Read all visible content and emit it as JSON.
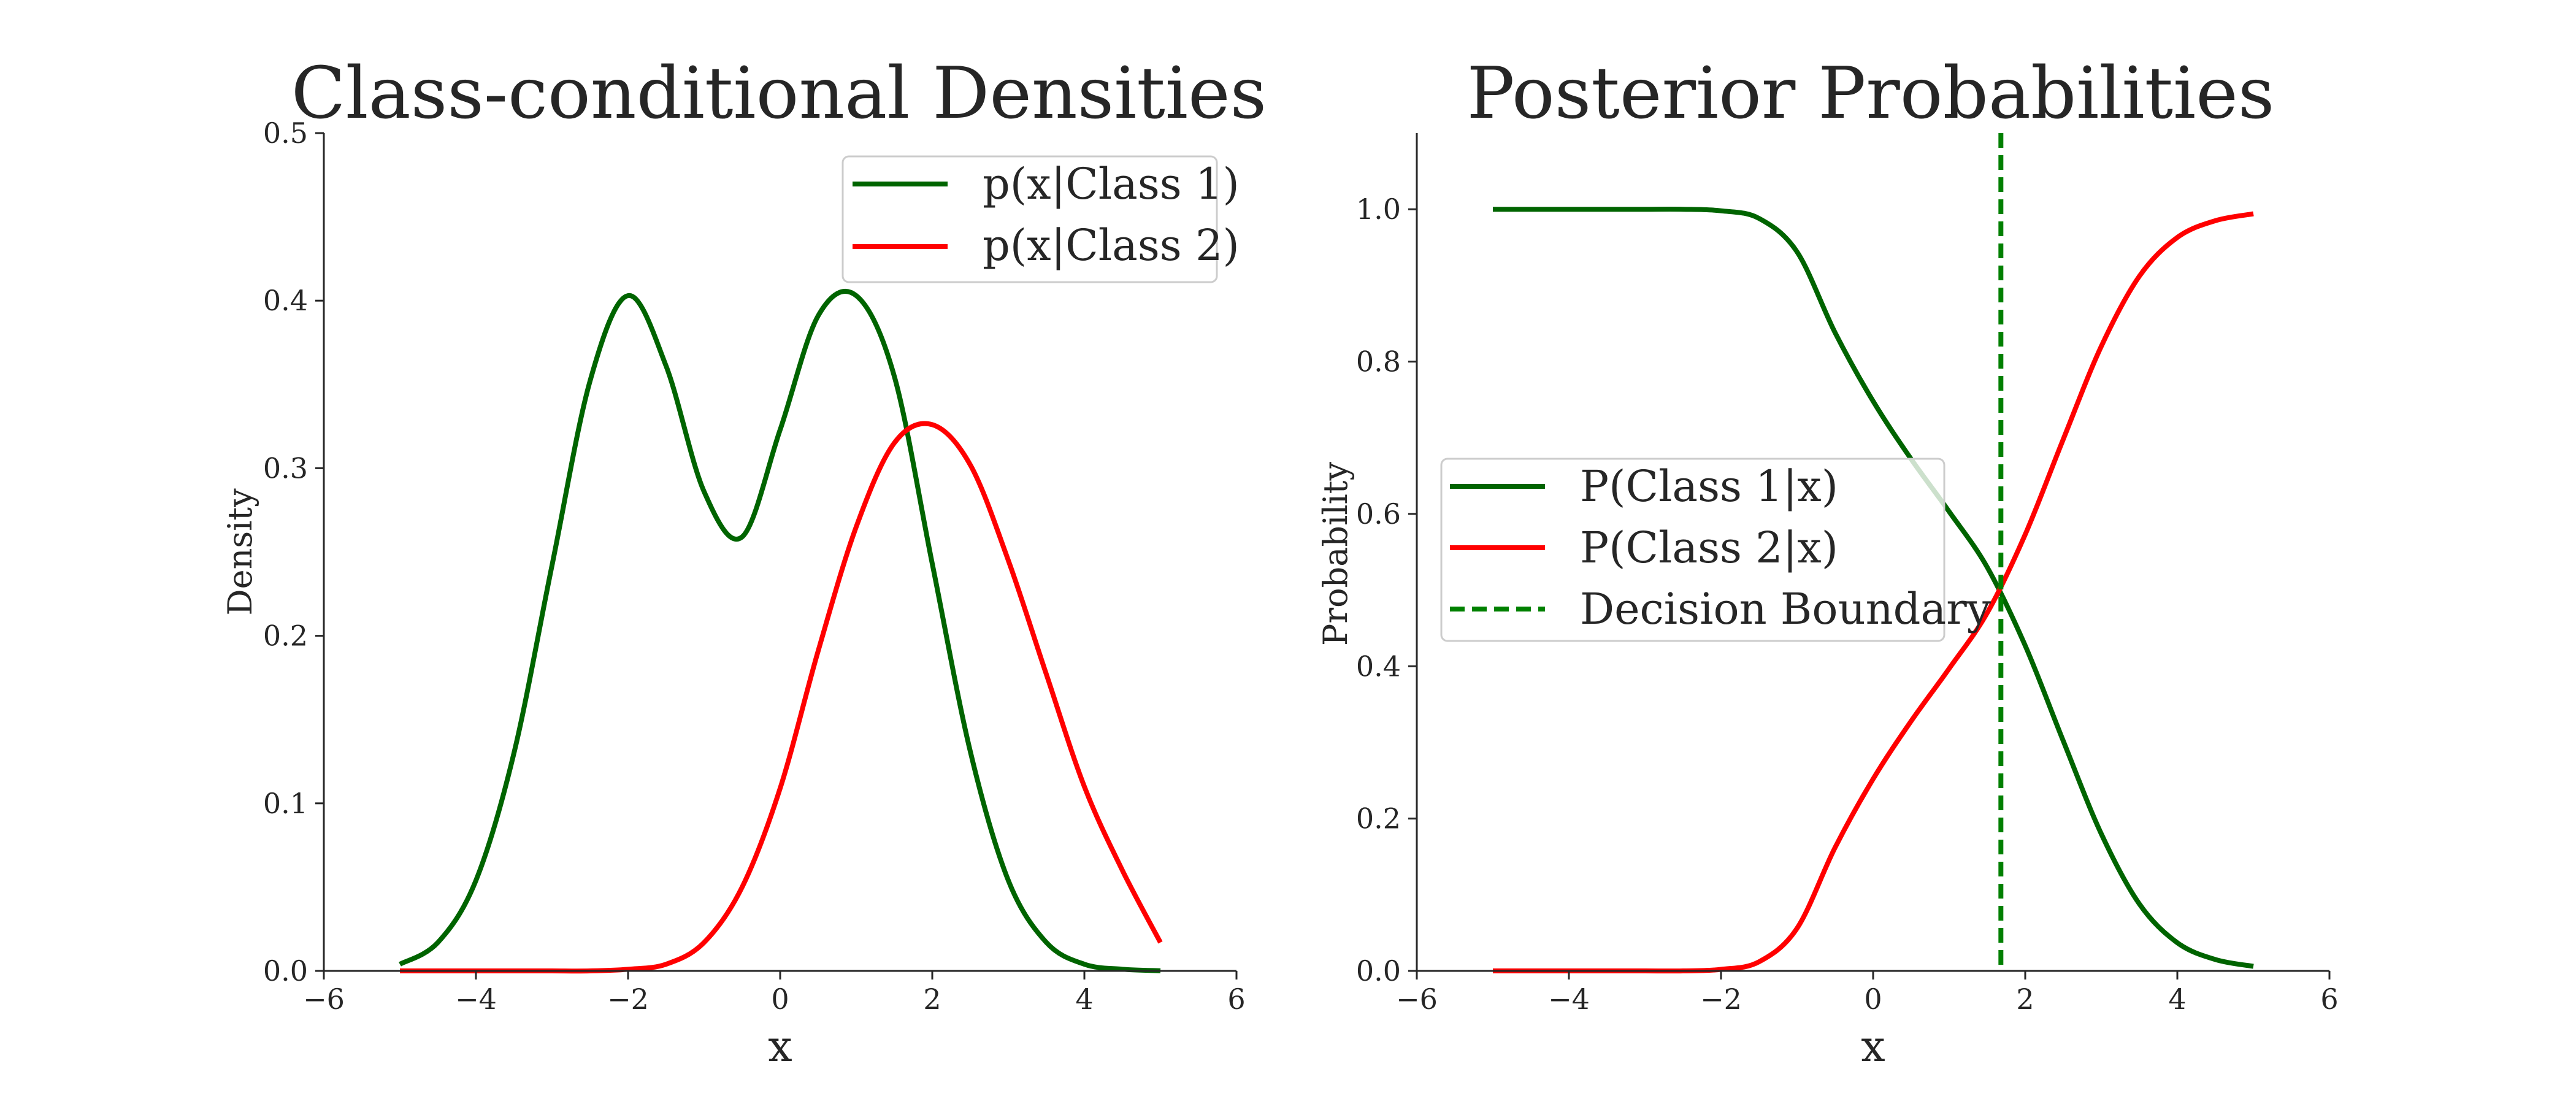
{
  "colors": {
    "class1": "#006400",
    "class2": "#ff0000",
    "boundary": "#008000",
    "axis": "#262626",
    "legend_border": "#cccccc"
  },
  "chart_data": [
    {
      "type": "line",
      "title": "Class-conditional Densities",
      "xlabel": "x",
      "ylabel": "Density",
      "xlim": [
        -6,
        6
      ],
      "ylim": [
        0,
        0.5
      ],
      "xticks": [
        -6,
        -4,
        -2,
        0,
        2,
        4,
        6
      ],
      "yticks": [
        0.0,
        0.1,
        0.2,
        0.3,
        0.4,
        0.5
      ],
      "xtick_labels": [
        "−6",
        "−4",
        "−2",
        "0",
        "2",
        "4",
        "6"
      ],
      "ytick_labels": [
        "0.0",
        "0.1",
        "0.2",
        "0.3",
        "0.4",
        "0.5"
      ],
      "legend_position": "upper right",
      "grid": false,
      "x": [
        -5,
        -4.5,
        -4,
        -3.5,
        -3,
        -2.5,
        -2,
        -1.5,
        -1,
        -0.5,
        0,
        0.5,
        1,
        1.5,
        2,
        2.5,
        3,
        3.5,
        4,
        4.5,
        5
      ],
      "series": [
        {
          "name": "p(x|Class 1)",
          "color_key": "class1",
          "values": [
            0.004,
            0.017,
            0.054,
            0.13,
            0.242,
            0.352,
            0.403,
            0.361,
            0.286,
            0.259,
            0.323,
            0.391,
            0.403,
            0.355,
            0.243,
            0.131,
            0.054,
            0.017,
            0.004,
            0.001,
            0.0001
          ]
        },
        {
          "name": "p(x|Class 2)",
          "color_key": "class2",
          "values": [
            0.0,
            0.0,
            0.0,
            0.0,
            0.0,
            0.0,
            0.001,
            0.004,
            0.017,
            0.05,
            0.109,
            0.191,
            0.265,
            0.315,
            0.326,
            0.302,
            0.245,
            0.177,
            0.11,
            0.06,
            0.017
          ]
        }
      ]
    },
    {
      "type": "line",
      "title": "Posterior Probabilities",
      "xlabel": "x",
      "ylabel": "Probability",
      "xlim": [
        -6,
        6
      ],
      "ylim": [
        0,
        1.1
      ],
      "xticks": [
        -6,
        -4,
        -2,
        0,
        2,
        4,
        6
      ],
      "yticks": [
        0.0,
        0.2,
        0.4,
        0.6,
        0.8,
        1.0
      ],
      "xtick_labels": [
        "−6",
        "−4",
        "−2",
        "0",
        "2",
        "4",
        "6"
      ],
      "ytick_labels": [
        "0.0",
        "0.2",
        "0.4",
        "0.6",
        "0.8",
        "1.0"
      ],
      "legend_position": "center left",
      "grid": false,
      "x": [
        -5,
        -4.5,
        -4,
        -3.5,
        -3,
        -2.5,
        -2,
        -1.5,
        -1,
        -0.5,
        0,
        0.5,
        1,
        1.5,
        2,
        2.5,
        3,
        3.5,
        4,
        4.5,
        5
      ],
      "series": [
        {
          "name": "P(Class 1|x)",
          "color_key": "class1",
          "values": [
            1.0,
            1.0,
            1.0,
            1.0,
            1.0,
            1.0,
            0.998,
            0.988,
            0.944,
            0.838,
            0.748,
            0.672,
            0.603,
            0.53,
            0.427,
            0.302,
            0.18,
            0.088,
            0.037,
            0.015,
            0.006
          ]
        },
        {
          "name": "P(Class 2|x)",
          "color_key": "class2",
          "values": [
            0.0,
            0.0,
            0.0,
            0.0,
            0.0,
            0.0,
            0.002,
            0.012,
            0.056,
            0.162,
            0.252,
            0.328,
            0.397,
            0.47,
            0.573,
            0.698,
            0.82,
            0.912,
            0.963,
            0.985,
            0.994
          ]
        }
      ],
      "vlines": [
        {
          "name": "Decision Boundary",
          "x": 1.68,
          "color_key": "boundary",
          "style": "dashed"
        }
      ]
    }
  ]
}
